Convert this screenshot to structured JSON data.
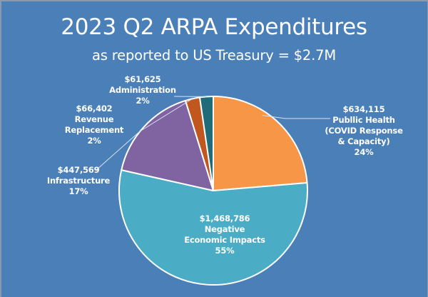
{
  "chart_data": {
    "type": "pie",
    "title": "2023 Q2 ARPA Expenditures",
    "subtitle": "as reported to US Treasury = $2.7M",
    "start_angle": "12 o'clock",
    "direction": "clockwise",
    "slices": [
      {
        "key": "public-health",
        "name": "Publlic Health (COVID Response & Capacity)",
        "value": 634115,
        "value_label": "$634,115",
        "label_lines": [
          "Publlic Health",
          "(COVID Response",
          "& Capacity)"
        ],
        "percent_label": "24%",
        "color": "#f79646"
      },
      {
        "key": "negative-economic-impacts",
        "name": "Negative Economic Impacts",
        "value": 1468786,
        "value_label": "$1,468,786",
        "label_lines": [
          "Negative",
          "Economic Impacts"
        ],
        "percent_label": "55%",
        "color": "#4bacc6"
      },
      {
        "key": "infrastructure",
        "name": "Infrastructure",
        "value": 447569,
        "value_label": "$447,569",
        "label_lines": [
          "Infrastructure"
        ],
        "percent_label": "17%",
        "color": "#8064a2"
      },
      {
        "key": "revenue-replacement",
        "name": "Revenue Replacement",
        "value": 66402,
        "value_label": "$66,402",
        "label_lines": [
          "Revenue",
          "Replacement"
        ],
        "percent_label": "2%",
        "color": "#c0571f"
      },
      {
        "key": "administration",
        "name": "Administration",
        "value": 61625,
        "value_label": "$61,625",
        "label_lines": [
          "Administration"
        ],
        "percent_label": "2%",
        "color": "#1f6b7a"
      }
    ],
    "legend": "none (data labels)",
    "background_color": "#4a7fb8",
    "slice_border_color": "#ffffff"
  }
}
